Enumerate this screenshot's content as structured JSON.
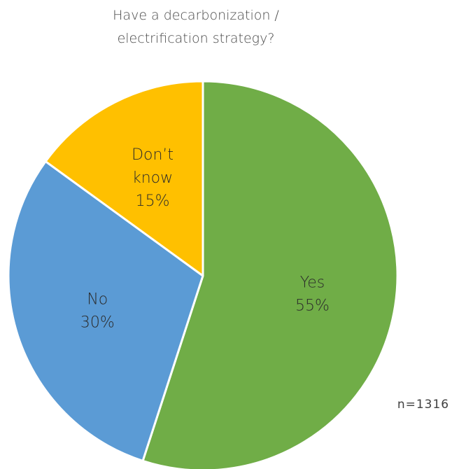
{
  "chart_data": {
    "type": "pie",
    "title": [
      "Have a decarbonization /",
      "electrification strategy?"
    ],
    "slices": [
      {
        "label": [
          "Yes",
          "55%"
        ],
        "value": 55,
        "color": "#70ad47"
      },
      {
        "label": [
          "No",
          "30%"
        ],
        "value": 30,
        "color": "#5b9bd5"
      },
      {
        "label": [
          "Don’t",
          "know",
          "15%"
        ],
        "value": 15,
        "color": "#ffc000"
      }
    ],
    "start_angle_deg": 0,
    "direction": "clockwise",
    "annotation": "n=1316"
  }
}
